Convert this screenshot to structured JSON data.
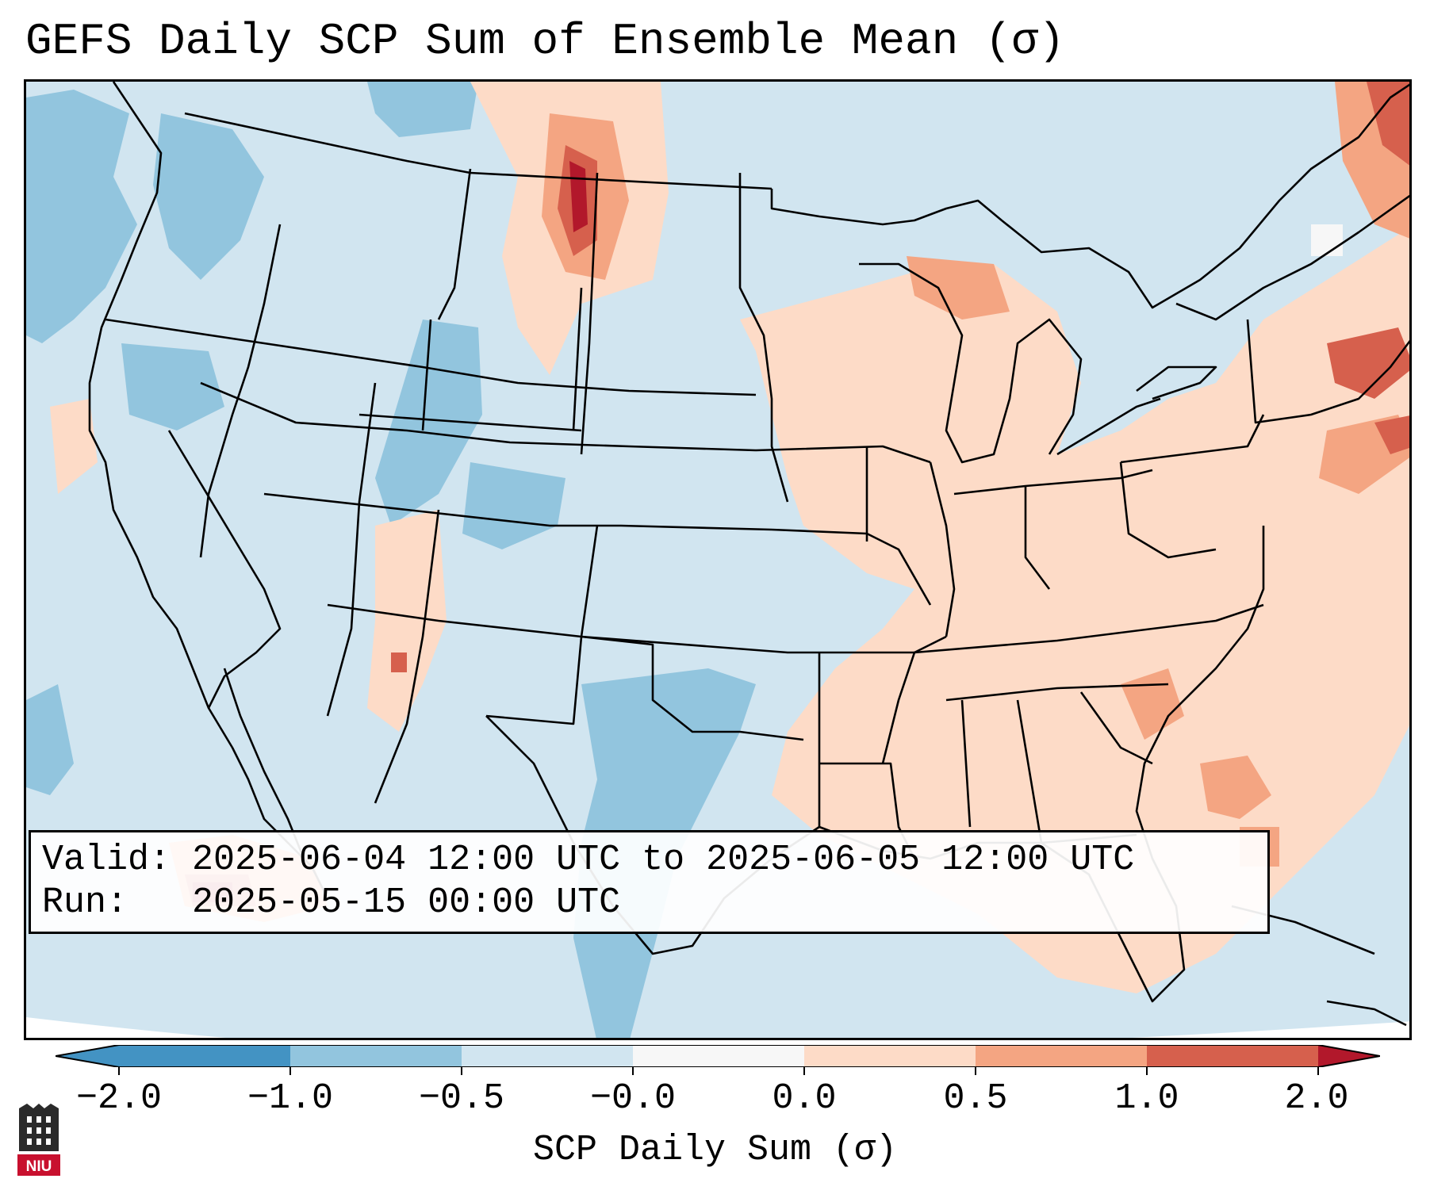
{
  "title": "GEFS Daily SCP Sum of Ensemble Mean (σ)",
  "info": {
    "valid_line": "Valid: 2025-06-04 12:00 UTC to 2025-06-05 12:00 UTC",
    "run_line": "Run:   2025-05-15 00:00 UTC"
  },
  "colorbar": {
    "label": "SCP Daily Sum (σ)",
    "ticks": [
      "−2.0",
      "−1.0",
      "−0.5",
      "−0.0",
      "0.0",
      "0.5",
      "1.0",
      "2.0"
    ],
    "colors": [
      "#4393c3",
      "#92c5de",
      "#d1e5f0",
      "#f7f7f7",
      "#fddbc7",
      "#f4a582",
      "#d6604d",
      "#b2182b"
    ]
  },
  "logo": {
    "text": "NIU",
    "colors": {
      "shield": "#2a2a2a",
      "banner": "#c8102e"
    }
  },
  "map_colors": {
    "background": "#d1e5f0",
    "neg_moderate": "#92c5de",
    "near_zero": "#f7f7f7",
    "pos_light": "#fddbc7",
    "pos_moderate": "#f4a582",
    "pos_strong": "#d6604d",
    "pos_extreme": "#b2182b",
    "border": "#000000"
  }
}
